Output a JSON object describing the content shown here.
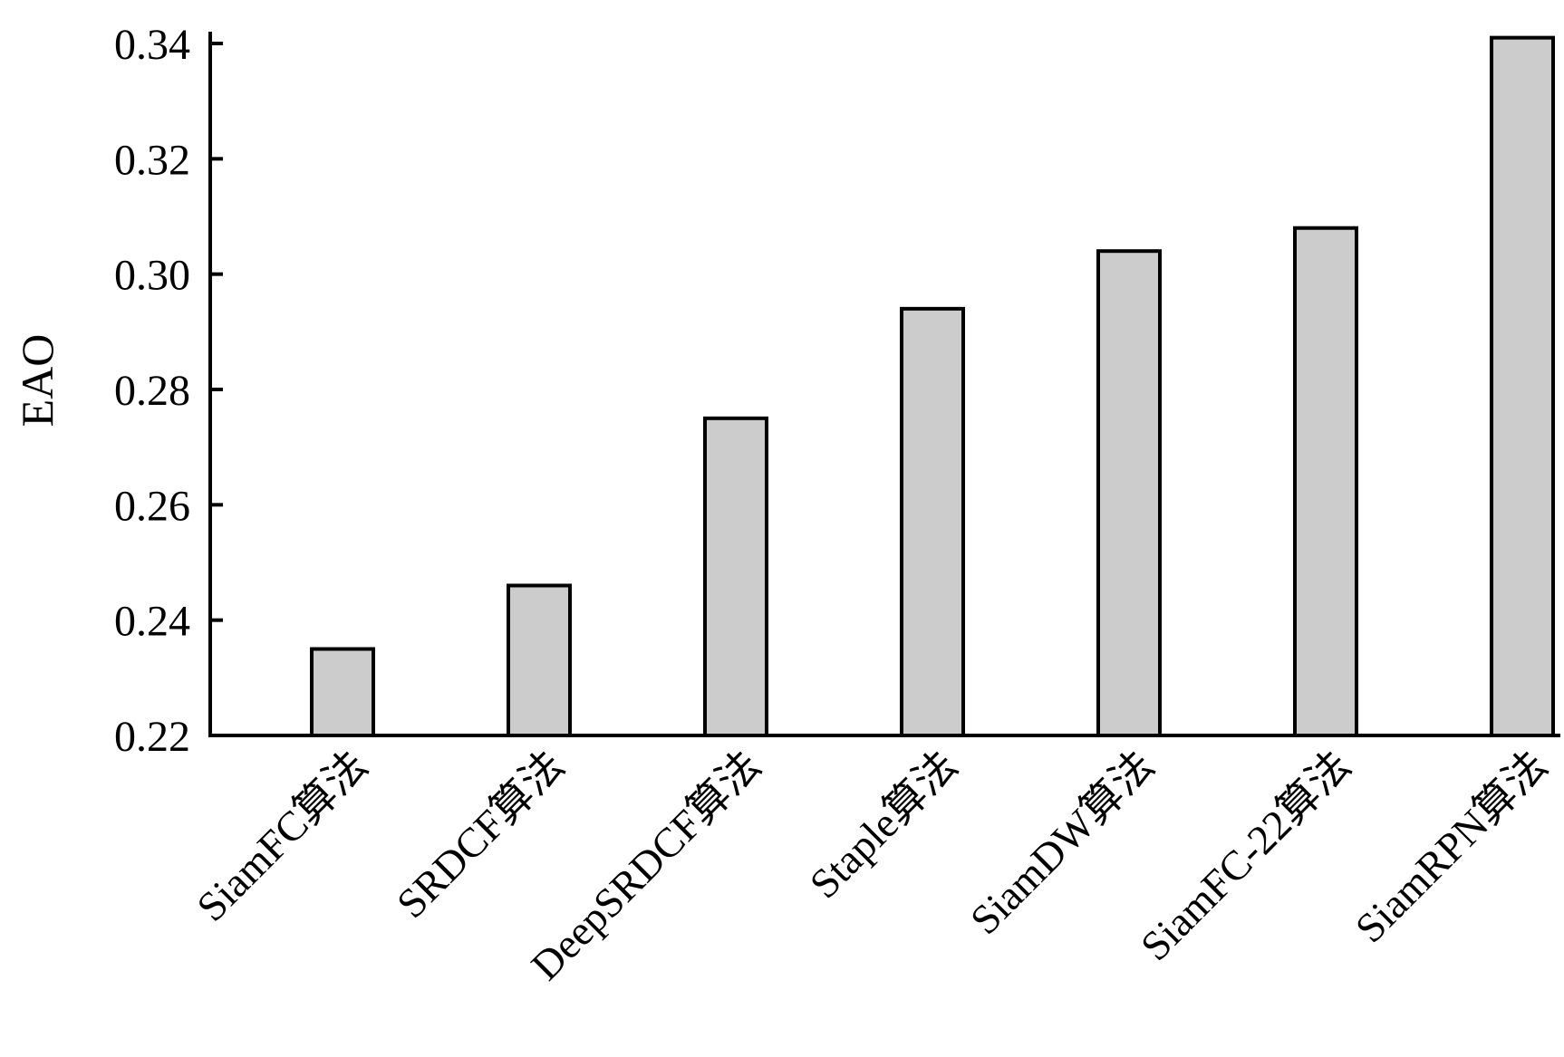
{
  "chart_data": {
    "type": "bar",
    "title": "",
    "xlabel": "",
    "ylabel": "EAO",
    "ylim": [
      0.22,
      0.34
    ],
    "yticks": [
      "0.22",
      "0.24",
      "0.26",
      "0.28",
      "0.30",
      "0.32",
      "0.34"
    ],
    "categories": [
      "SiamFC算法",
      "SRDCF算法",
      "DeepSRDCF算法",
      "Staple算法",
      "SiamDW算法",
      "SiamFC-22算法",
      "SiamRPN算法"
    ],
    "values": [
      0.235,
      0.246,
      0.275,
      0.294,
      0.304,
      0.308,
      0.341
    ],
    "bar_color": "#cccccc",
    "grid": false
  }
}
